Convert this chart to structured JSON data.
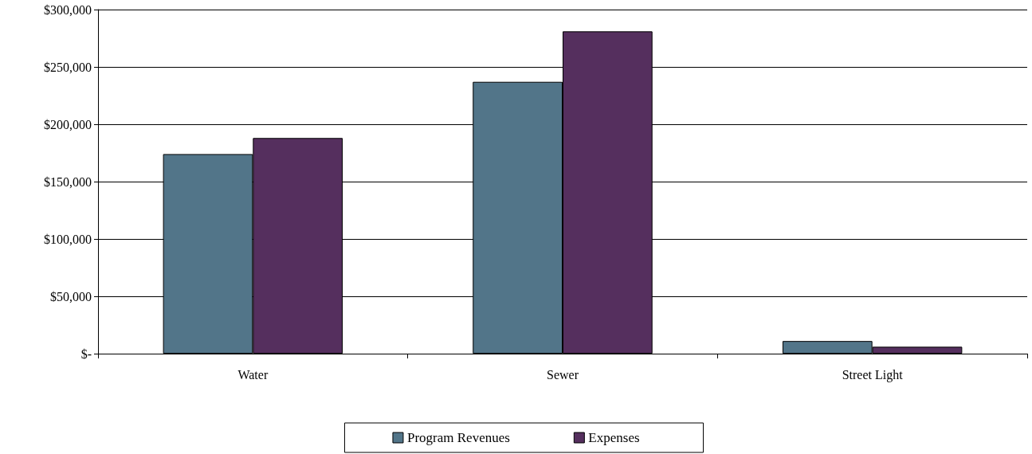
{
  "chart_data": {
    "type": "bar",
    "categories": [
      "Water",
      "Sewer",
      "Street Light"
    ],
    "series": [
      {
        "name": "Program Revenues",
        "color": "#527589",
        "values": [
          174000,
          237000,
          11000
        ]
      },
      {
        "name": "Expenses",
        "color": "#552f5e",
        "values": [
          188000,
          281000,
          6000
        ]
      }
    ],
    "ylim": [
      0,
      300000
    ],
    "yticks": [
      {
        "value": 0,
        "label": "$-"
      },
      {
        "value": 50000,
        "label": "$50,000"
      },
      {
        "value": 100000,
        "label": "$100,000"
      },
      {
        "value": 150000,
        "label": "$150,000"
      },
      {
        "value": 200000,
        "label": "$200,000"
      },
      {
        "value": 250000,
        "label": "$250,000"
      },
      {
        "value": 300000,
        "label": "$300,000"
      }
    ],
    "grid": "y",
    "legend": "bottom"
  }
}
